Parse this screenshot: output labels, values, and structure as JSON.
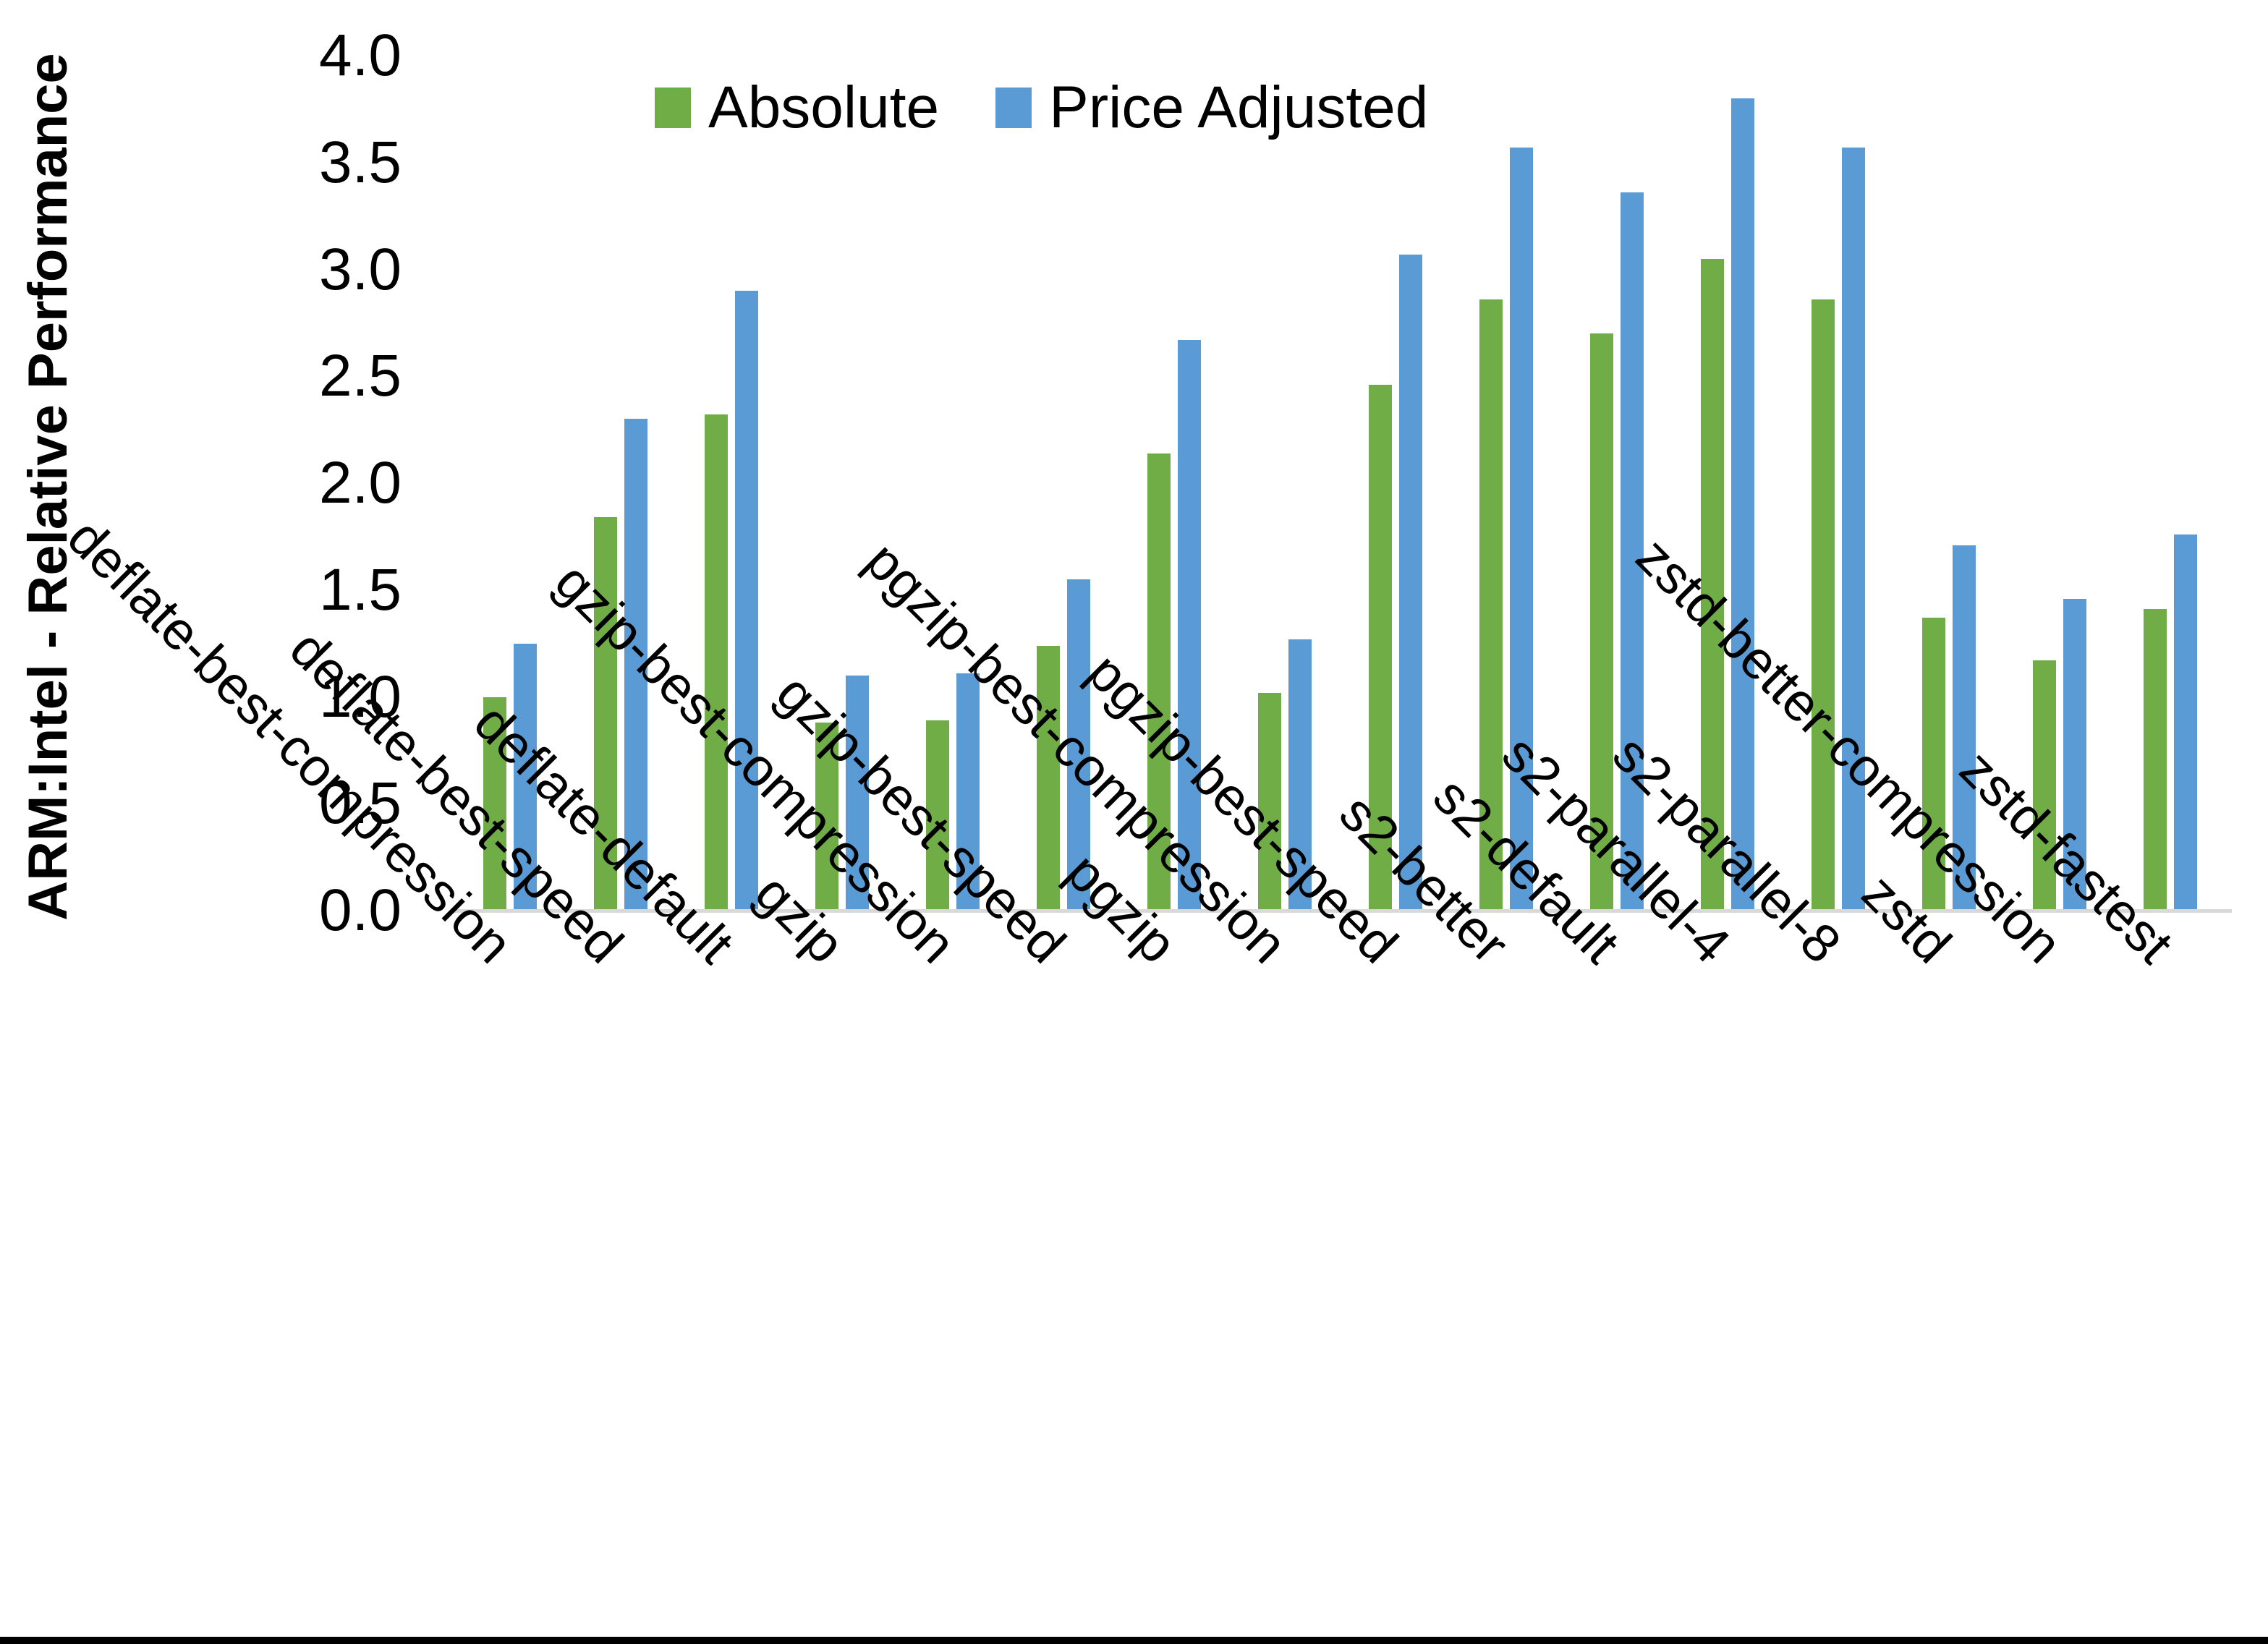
{
  "chart_data": {
    "type": "bar",
    "title": "",
    "xlabel": "",
    "ylabel": "ARM:Intel - Relative Performance",
    "ylim": [
      0.0,
      4.0
    ],
    "ytick_step": 0.5,
    "ytick_labels": [
      "0.0",
      "0.5",
      "1.0",
      "1.5",
      "2.0",
      "2.5",
      "3.0",
      "3.5",
      "4.0"
    ],
    "grid": false,
    "legend_position": "top-center",
    "categories": [
      "deflate-best-compression",
      "deflate-best-speed",
      "deflate-default",
      "gzip",
      "gzip-best-compression",
      "gzip-best-speed",
      "pgzip",
      "pgzip-best-compression",
      "pgzip-best-speed",
      "s2-better",
      "s2-default",
      "s2-parallel-4",
      "s2-parallel-8",
      "zstd",
      "zstd-better-compression",
      "zstd-fastest"
    ],
    "series": [
      {
        "name": "Absolute",
        "color": "#70AD47",
        "values": [
          1.0,
          1.84,
          2.32,
          0.88,
          0.89,
          1.24,
          2.14,
          1.02,
          2.46,
          2.86,
          2.7,
          3.05,
          2.86,
          1.37,
          1.17,
          1.41
        ]
      },
      {
        "name": "Price Adjusted",
        "color": "#5B9BD5",
        "values": [
          1.25,
          2.3,
          2.9,
          1.1,
          1.11,
          1.55,
          2.67,
          1.27,
          3.07,
          3.57,
          3.36,
          3.8,
          3.57,
          1.71,
          1.46,
          1.76
        ]
      }
    ]
  },
  "colors": {
    "background": "#FFFFFF",
    "axis_line": "#D9D9D9",
    "text": "#000000",
    "bottom_edge": "#000000"
  }
}
